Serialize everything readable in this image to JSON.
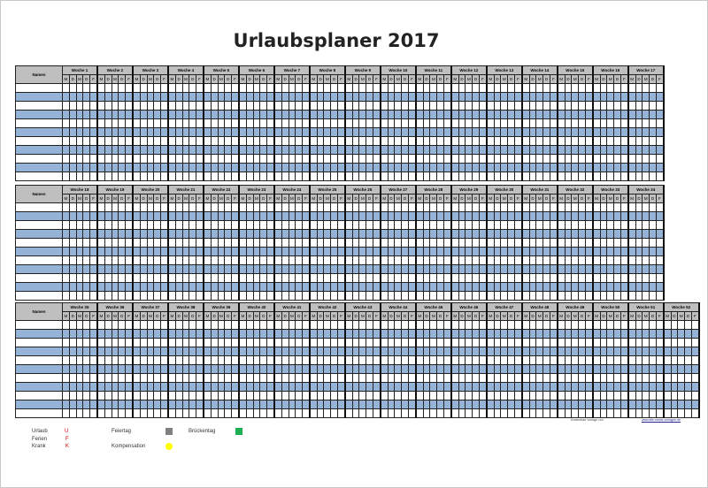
{
  "title": "Urlaubsplaner 2017",
  "name_header": "Namen",
  "week_prefix": "Woche",
  "day_letters": [
    "M",
    "D",
    "M",
    "D",
    "F"
  ],
  "blocks": [
    {
      "weeks_from": 1,
      "weeks_to": 17
    },
    {
      "weeks_from": 18,
      "weeks_to": 34
    },
    {
      "weeks_from": 35,
      "weeks_to": 52
    }
  ],
  "rows_per_block": 11,
  "colors": {
    "header": "#bfbfbf",
    "row_alt": "#95b3d7",
    "feiertag": "#808080",
    "brueckentag": "#1eb050",
    "kompensation": "#ffff00"
  },
  "legend": {
    "urlaub": {
      "label": "Urlaub",
      "code": "U"
    },
    "ferien": {
      "label": "Ferien",
      "code": "F"
    },
    "krank": {
      "label": "Krank",
      "code": "K"
    },
    "feiertag": "Feiertag",
    "brueckentag": "Brückentag",
    "kompensation": "Kompensation"
  },
  "footer": {
    "note": "Kostenlose Vorlage von",
    "link": "www.alle-meine-vorlagen.de"
  }
}
